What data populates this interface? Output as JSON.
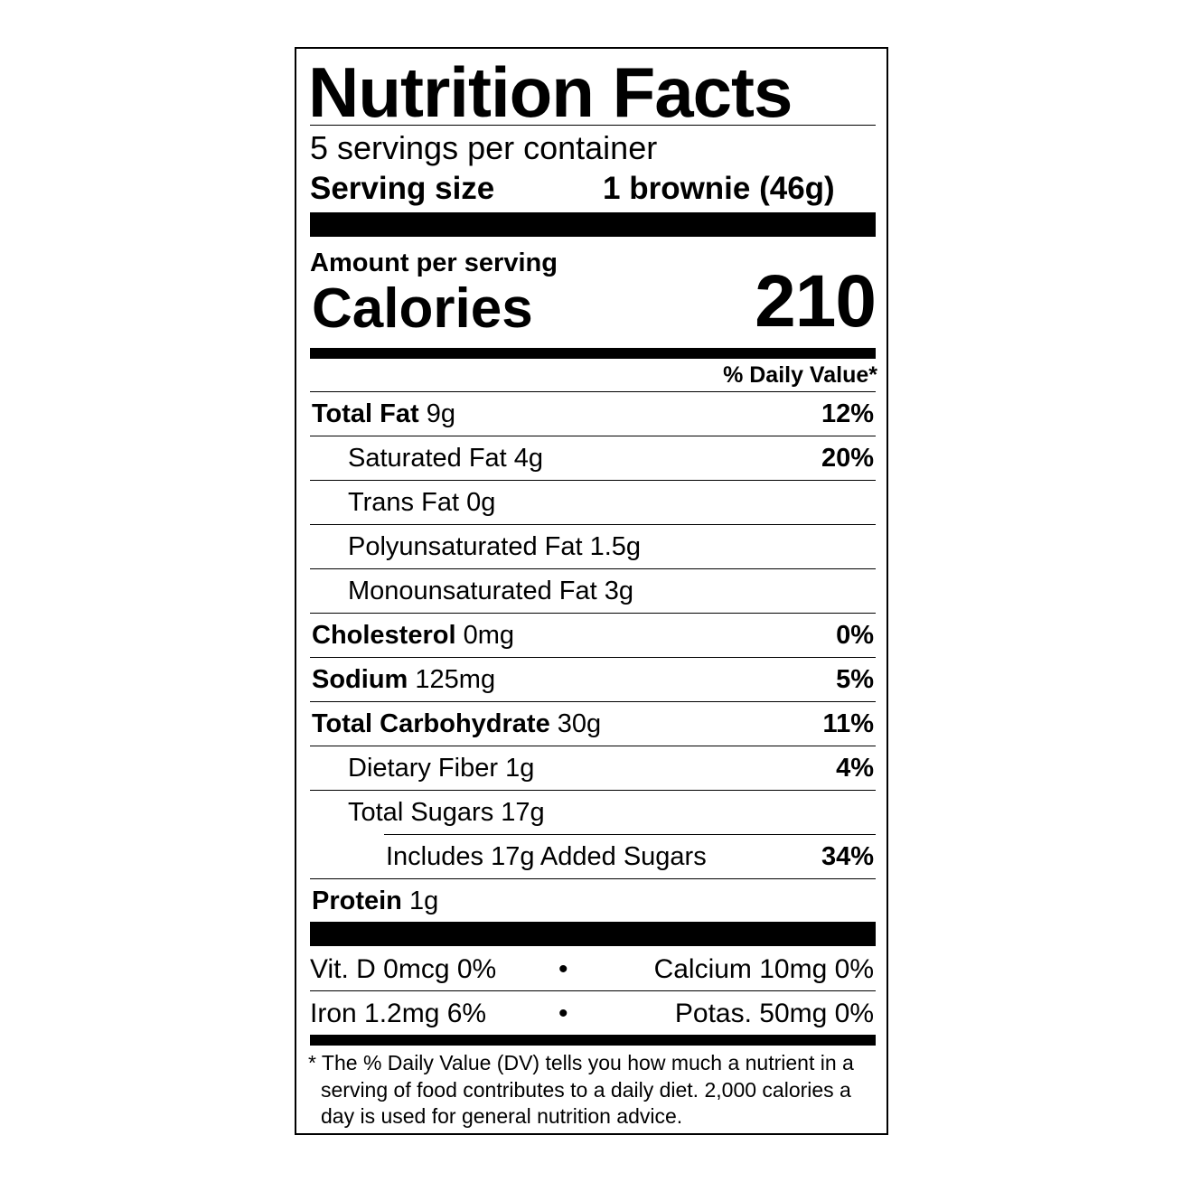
{
  "title": "Nutrition Facts",
  "servings_per_container": "5 servings per container",
  "serving_size_label": "Serving size",
  "serving_size_value": "1 brownie (46g)",
  "amount_per_serving": "Amount per serving",
  "calories_label": "Calories",
  "calories_value": "210",
  "daily_value_header": "% Daily Value*",
  "nutrients": [
    {
      "name": "Total Fat",
      "amount": "9g",
      "dv": "12%",
      "bold": true,
      "indent": 0
    },
    {
      "name": "Saturated Fat",
      "amount": "4g",
      "dv": "20%",
      "bold": false,
      "indent": 1
    },
    {
      "name": "Trans Fat",
      "amount": "0g",
      "dv": "",
      "bold": false,
      "indent": 1
    },
    {
      "name": "Polyunsaturated Fat",
      "amount": "1.5g",
      "dv": "",
      "bold": false,
      "indent": 1
    },
    {
      "name": "Monounsaturated Fat",
      "amount": "3g",
      "dv": "",
      "bold": false,
      "indent": 1
    },
    {
      "name": "Cholesterol",
      "amount": "0mg",
      "dv": "0%",
      "bold": true,
      "indent": 0
    },
    {
      "name": "Sodium",
      "amount": "125mg",
      "dv": "5%",
      "bold": true,
      "indent": 0
    },
    {
      "name": "Total Carbohydrate",
      "amount": "30g",
      "dv": "11%",
      "bold": true,
      "indent": 0
    },
    {
      "name": "Dietary Fiber",
      "amount": "1g",
      "dv": "4%",
      "bold": false,
      "indent": 1
    },
    {
      "name": "Total Sugars",
      "amount": "17g",
      "dv": "",
      "bold": false,
      "indent": 1
    },
    {
      "name": "Includes 17g Added Sugars",
      "amount": "",
      "dv": "34%",
      "bold": false,
      "indent": 2
    },
    {
      "name": "Protein",
      "amount": "1g",
      "dv": "",
      "bold": true,
      "indent": 0
    }
  ],
  "micronutrients": [
    {
      "left": "Vit. D 0mcg 0%",
      "right": "Calcium 10mg 0%"
    },
    {
      "left": "Iron 1.2mg 6%",
      "right": "Potas. 50mg 0%"
    }
  ],
  "bullet": "•",
  "footnote": "* The % Daily Value (DV) tells you how much a nutrient in a serving of food contributes to a daily diet. 2,000 calories a day is used for general nutrition advice."
}
